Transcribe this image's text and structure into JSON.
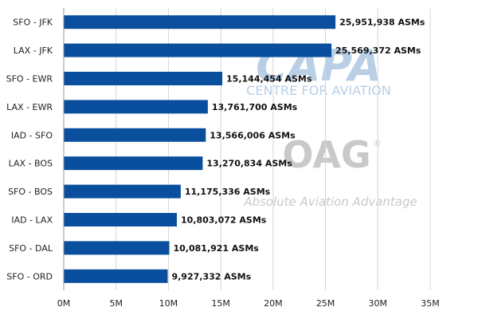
{
  "chart_data": {
    "type": "bar",
    "orientation": "horizontal",
    "categories": [
      "SFO - JFK",
      "LAX - JFK",
      "SFO - EWR",
      "LAX - EWR",
      "IAD - SFO",
      "LAX - BOS",
      "SFO - BOS",
      "IAD - LAX",
      "SFO - DAL",
      "SFO - ORD"
    ],
    "values": [
      25951938,
      25569372,
      15144454,
      13761700,
      13566006,
      13270834,
      11175336,
      10803072,
      10081921,
      9927332
    ],
    "data_labels": [
      "25,951,938 ASMs",
      "25,569,372 ASMs",
      "15,144,454 ASMs",
      "13,761,700 ASMs",
      "13,566,006 ASMs",
      "13,270,834 ASMs",
      "11,175,336 ASMs",
      "10,803,072 ASMs",
      "10,081,921 ASMs",
      "9,927,332 ASMs"
    ],
    "xlim": [
      0,
      35000000
    ],
    "x_ticks": [
      0,
      5000000,
      10000000,
      15000000,
      20000000,
      25000000,
      30000000,
      35000000
    ],
    "x_tick_labels": [
      "0M",
      "5M",
      "10M",
      "15M",
      "20M",
      "25M",
      "30M",
      "35M"
    ],
    "grid": "vertical",
    "bar_color": "#0a4f9e",
    "title": "",
    "xlabel": "",
    "ylabel": ""
  },
  "watermarks": {
    "capa": {
      "logo": "CAPA",
      "tagline": "CENTRE FOR AVIATION"
    },
    "oag": {
      "logo": "OAG",
      "tagline": "Absolute Aviation Advantage"
    }
  },
  "colors": {
    "capa_watermark": "#b8cfe6",
    "oag_watermark": "#c9c9c9",
    "grid": "#d6d6d6",
    "axis": "#9a9a9a"
  }
}
